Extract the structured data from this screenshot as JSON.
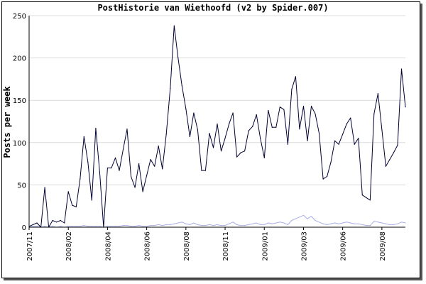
{
  "chart_data": {
    "type": "line",
    "title": "PostHistorie van Wiethoofd (v2 by Spider.007)",
    "xlabel": "",
    "ylabel": "Posts per week",
    "ylim": [
      0,
      250
    ],
    "yticks": [
      0,
      50,
      100,
      150,
      200,
      250
    ],
    "grid": true,
    "xticks": [
      "2007/11",
      "2008/02",
      "2008/04",
      "2008/06",
      "2008/08",
      "2008/11",
      "2009/01",
      "2009/03",
      "2009/06",
      "2009/08"
    ],
    "xtick_positions": [
      0,
      10,
      20,
      30,
      40,
      50,
      60,
      70,
      80,
      90
    ],
    "series": [
      {
        "color": "#000033",
        "values": [
          1,
          3,
          5,
          0,
          47,
          0,
          8,
          6,
          8,
          5,
          42,
          26,
          24,
          57,
          107,
          77,
          32,
          117,
          65,
          0,
          70,
          70,
          82,
          67,
          92,
          116,
          60,
          47,
          75,
          42,
          61,
          80,
          72,
          96,
          69,
          110,
          164,
          238,
          200,
          167,
          140,
          107,
          135,
          115,
          67,
          67,
          111,
          94,
          122,
          90,
          105,
          122,
          135,
          83,
          88,
          90,
          114,
          119,
          133,
          105,
          82,
          138,
          118,
          118,
          142,
          139,
          98,
          163,
          178,
          116,
          143,
          102,
          143,
          134,
          111,
          57,
          60,
          77,
          102,
          98,
          110,
          122,
          129,
          98,
          105,
          38,
          35,
          32,
          134,
          158,
          115,
          72,
          80,
          88,
          97,
          187,
          142
        ]
      },
      {
        "color": "#aab0e8",
        "values": [
          1,
          1,
          1,
          0,
          1,
          0,
          1,
          0,
          1,
          0,
          1,
          1,
          1,
          1,
          2,
          1,
          1,
          1,
          1,
          0,
          1,
          1,
          1,
          1,
          2,
          2,
          1,
          1,
          2,
          1,
          1,
          2,
          2,
          3,
          2,
          3,
          3,
          4,
          5,
          6,
          4,
          3,
          5,
          3,
          2,
          2,
          3,
          2,
          3,
          2,
          2,
          4,
          6,
          3,
          2,
          2,
          3,
          4,
          5,
          3,
          3,
          5,
          4,
          5,
          6,
          5,
          3,
          8,
          10,
          12,
          14,
          10,
          13,
          8,
          6,
          4,
          3,
          4,
          5,
          4,
          5,
          6,
          5,
          4,
          4,
          3,
          2,
          2,
          7,
          6,
          5,
          4,
          3,
          3,
          4,
          6,
          5
        ]
      }
    ]
  }
}
